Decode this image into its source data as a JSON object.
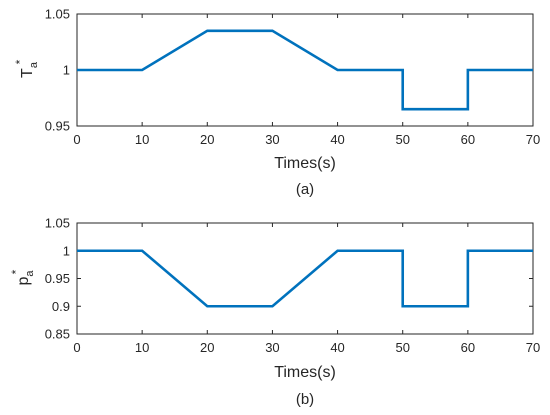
{
  "chart_data": [
    {
      "type": "line",
      "caption": "(a)",
      "xlabel": "Times(s)",
      "ylabel": {
        "base": "T",
        "sup": "*",
        "sub": "a"
      },
      "xlim": [
        0,
        70
      ],
      "ylim": [
        0.95,
        1.05
      ],
      "xticks": [
        "0",
        "10",
        "20",
        "30",
        "40",
        "50",
        "60",
        "70"
      ],
      "yticks": [
        "0.95",
        "1",
        "1.05"
      ],
      "color": "#0072BD",
      "series": [
        {
          "x": [
            0,
            10,
            20,
            30,
            40,
            50,
            50,
            60,
            60,
            70
          ],
          "y": [
            1,
            1,
            1.035,
            1.035,
            1,
            1,
            0.965,
            0.965,
            1,
            1
          ]
        }
      ]
    },
    {
      "type": "line",
      "caption": "(b)",
      "xlabel": "Times(s)",
      "ylabel": {
        "base": "p",
        "sup": "*",
        "sub": "a"
      },
      "xlim": [
        0,
        70
      ],
      "ylim": [
        0.85,
        1.05
      ],
      "xticks": [
        "0",
        "10",
        "20",
        "30",
        "40",
        "50",
        "60",
        "70"
      ],
      "yticks": [
        "0.85",
        "0.9",
        "0.95",
        "1",
        "1.05"
      ],
      "color": "#0072BD",
      "series": [
        {
          "x": [
            0,
            10,
            20,
            30,
            40,
            50,
            50,
            60,
            60,
            70
          ],
          "y": [
            1,
            1,
            0.9,
            0.9,
            1,
            1,
            0.9,
            0.9,
            1,
            1
          ]
        }
      ]
    }
  ]
}
